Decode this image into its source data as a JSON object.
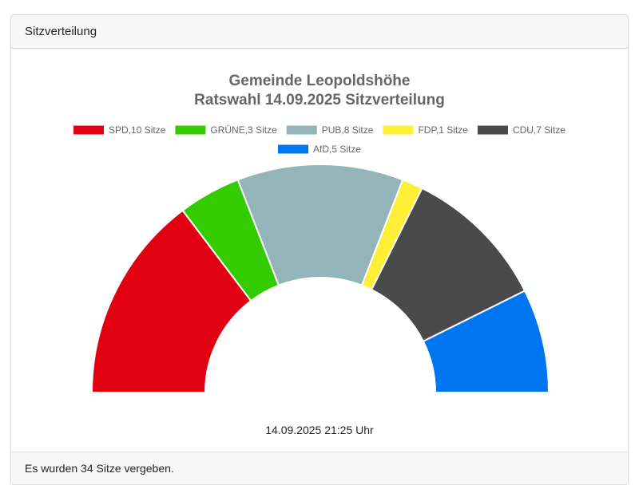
{
  "card": {
    "header_title": "Sitzverteilung",
    "timestamp": "14.09.2025 21:25 Uhr",
    "footer_text": "Es wurden 34 Sitze vergeben."
  },
  "chart_data": {
    "type": "pie",
    "style": "semi-doughnut",
    "title": [
      "Gemeinde Leopoldshöhe",
      "Ratswahl 14.09.2025 Sitzverteilung"
    ],
    "legend_position": "top",
    "total_seats": 34,
    "series": [
      {
        "name": "SPD",
        "label": "SPD,10 Sitze",
        "value": 10,
        "color": "#e0000f"
      },
      {
        "name": "GRÜNE",
        "label": "GRÜNE,3 Sitze",
        "value": 3,
        "color": "#33cc00"
      },
      {
        "name": "PUB",
        "label": "PUB,8 Sitze",
        "value": 8,
        "color": "#93b5b9"
      },
      {
        "name": "FDP",
        "label": "FDP,1 Sitze",
        "value": 1,
        "color": "#ffee33"
      },
      {
        "name": "CDU",
        "label": "CDU,7 Sitze",
        "value": 7,
        "color": "#4a4a4a"
      },
      {
        "name": "AfD",
        "label": "AfD,5 Sitze",
        "value": 5,
        "color": "#0075f0"
      }
    ]
  }
}
